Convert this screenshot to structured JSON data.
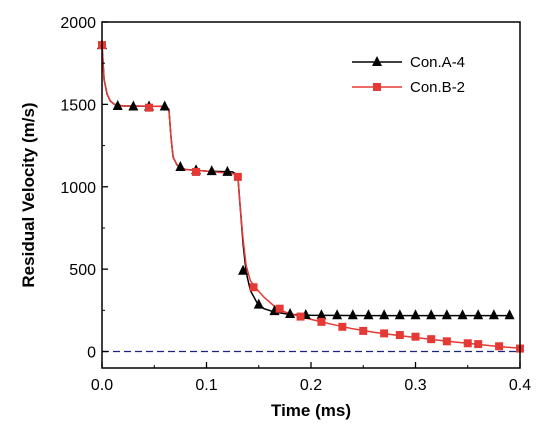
{
  "chart_data": {
    "type": "line",
    "title": "",
    "xlabel": "Time (ms)",
    "ylabel": "Residual Velocity (m/s)",
    "xlim": [
      0,
      0.4
    ],
    "ylim": [
      -100,
      2000
    ],
    "x_ticks": [
      "0.0",
      "0.1",
      "0.2",
      "0.3",
      "0.4"
    ],
    "y_ticks": [
      "0",
      "500",
      "1000",
      "1500",
      "2000"
    ],
    "grid": false,
    "legend_position": "top-right",
    "reference_line": {
      "y": 0,
      "style": "dashed",
      "color": "#1a237e"
    },
    "series": [
      {
        "name": "Con.A-4",
        "color": "#000000",
        "marker": "triangle",
        "line": [
          [
            0.0,
            1860
          ],
          [
            0.002,
            1650
          ],
          [
            0.005,
            1560
          ],
          [
            0.008,
            1520
          ],
          [
            0.012,
            1500
          ],
          [
            0.02,
            1490
          ],
          [
            0.06,
            1488
          ],
          [
            0.064,
            1470
          ],
          [
            0.066,
            1300
          ],
          [
            0.068,
            1180
          ],
          [
            0.072,
            1130
          ],
          [
            0.08,
            1105
          ],
          [
            0.1,
            1095
          ],
          [
            0.125,
            1090
          ],
          [
            0.13,
            1070
          ],
          [
            0.132,
            900
          ],
          [
            0.135,
            650
          ],
          [
            0.138,
            480
          ],
          [
            0.142,
            370
          ],
          [
            0.148,
            300
          ],
          [
            0.155,
            260
          ],
          [
            0.165,
            240
          ],
          [
            0.18,
            225
          ],
          [
            0.2,
            220
          ],
          [
            0.25,
            218
          ],
          [
            0.3,
            218
          ],
          [
            0.35,
            218
          ],
          [
            0.39,
            218
          ]
        ],
        "markers": [
          [
            0.0,
            1860
          ],
          [
            0.015,
            1490
          ],
          [
            0.03,
            1487
          ],
          [
            0.045,
            1487
          ],
          [
            0.06,
            1487
          ],
          [
            0.075,
            1120
          ],
          [
            0.09,
            1100
          ],
          [
            0.105,
            1095
          ],
          [
            0.12,
            1090
          ],
          [
            0.135,
            490
          ],
          [
            0.15,
            285
          ],
          [
            0.165,
            245
          ],
          [
            0.18,
            228
          ],
          [
            0.195,
            222
          ],
          [
            0.21,
            220
          ],
          [
            0.225,
            220
          ],
          [
            0.24,
            220
          ],
          [
            0.255,
            220
          ],
          [
            0.27,
            220
          ],
          [
            0.285,
            220
          ],
          [
            0.3,
            220
          ],
          [
            0.315,
            220
          ],
          [
            0.33,
            220
          ],
          [
            0.345,
            220
          ],
          [
            0.36,
            220
          ],
          [
            0.375,
            220
          ],
          [
            0.39,
            220
          ]
        ]
      },
      {
        "name": "Con.B-2",
        "color": "#e53935",
        "marker": "square",
        "line": [
          [
            0.0,
            1860
          ],
          [
            0.002,
            1650
          ],
          [
            0.005,
            1560
          ],
          [
            0.008,
            1520
          ],
          [
            0.012,
            1500
          ],
          [
            0.02,
            1490
          ],
          [
            0.06,
            1488
          ],
          [
            0.064,
            1470
          ],
          [
            0.066,
            1300
          ],
          [
            0.068,
            1180
          ],
          [
            0.072,
            1130
          ],
          [
            0.08,
            1105
          ],
          [
            0.1,
            1095
          ],
          [
            0.125,
            1080
          ],
          [
            0.13,
            1065
          ],
          [
            0.132,
            900
          ],
          [
            0.135,
            680
          ],
          [
            0.138,
            520
          ],
          [
            0.142,
            430
          ],
          [
            0.148,
            380
          ],
          [
            0.155,
            330
          ],
          [
            0.165,
            275
          ],
          [
            0.175,
            240
          ],
          [
            0.19,
            212
          ],
          [
            0.2,
            195
          ],
          [
            0.22,
            165
          ],
          [
            0.24,
            138
          ],
          [
            0.26,
            117
          ],
          [
            0.28,
            100
          ],
          [
            0.3,
            85
          ],
          [
            0.32,
            70
          ],
          [
            0.34,
            56
          ],
          [
            0.36,
            43
          ],
          [
            0.38,
            30
          ],
          [
            0.4,
            20
          ]
        ],
        "markers": [
          [
            0.0,
            1860
          ],
          [
            0.045,
            1480
          ],
          [
            0.09,
            1090
          ],
          [
            0.13,
            1060
          ],
          [
            0.145,
            390
          ],
          [
            0.17,
            260
          ],
          [
            0.19,
            212
          ],
          [
            0.21,
            180
          ],
          [
            0.23,
            150
          ],
          [
            0.25,
            125
          ],
          [
            0.27,
            110
          ],
          [
            0.285,
            100
          ],
          [
            0.3,
            90
          ],
          [
            0.315,
            75
          ],
          [
            0.33,
            62
          ],
          [
            0.35,
            50
          ],
          [
            0.36,
            45
          ],
          [
            0.38,
            32
          ],
          [
            0.4,
            18
          ]
        ]
      }
    ]
  }
}
